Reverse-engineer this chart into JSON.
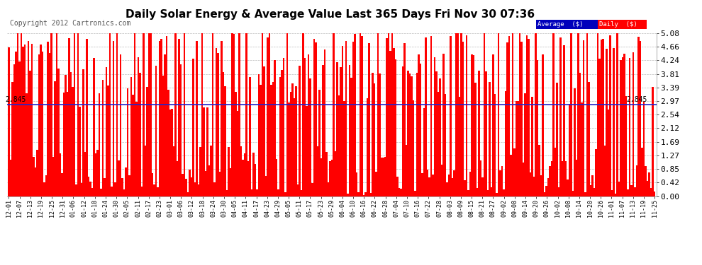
{
  "title": "Daily Solar Energy & Average Value Last 365 Days Fri Nov 30 07:36",
  "copyright": "Copyright 2012 Cartronics.com",
  "average_value": 2.845,
  "ylim": [
    0.0,
    5.08
  ],
  "yticks": [
    0.0,
    0.42,
    0.85,
    1.27,
    1.69,
    2.12,
    2.54,
    2.97,
    3.39,
    3.81,
    4.24,
    4.66,
    5.08
  ],
  "bar_color": "#FF0000",
  "avg_line_color": "#2222CC",
  "background_color": "#FFFFFF",
  "grid_color": "#AAAAAA",
  "legend_avg_bg": "#0000BB",
  "legend_daily_bg": "#FF0000",
  "legend_text": "Average  ($)",
  "legend_text2": "Daily  ($)",
  "xtick_labels": [
    "12-01",
    "12-07",
    "12-13",
    "12-19",
    "12-25",
    "12-31",
    "01-06",
    "01-12",
    "01-18",
    "01-24",
    "01-30",
    "02-05",
    "02-11",
    "02-17",
    "02-23",
    "03-01",
    "03-06",
    "03-12",
    "03-18",
    "03-24",
    "03-30",
    "04-05",
    "04-11",
    "04-17",
    "04-23",
    "04-29",
    "05-05",
    "05-11",
    "05-17",
    "05-23",
    "05-29",
    "06-04",
    "06-10",
    "06-16",
    "06-22",
    "06-28",
    "07-04",
    "07-10",
    "07-16",
    "07-22",
    "07-28",
    "08-03",
    "08-09",
    "08-15",
    "08-21",
    "08-27",
    "09-02",
    "09-08",
    "09-14",
    "09-20",
    "09-26",
    "10-02",
    "10-08",
    "10-14",
    "10-20",
    "10-26",
    "11-01",
    "11-07",
    "11-13",
    "11-19",
    "11-25"
  ],
  "num_bars": 365,
  "seed": 123
}
